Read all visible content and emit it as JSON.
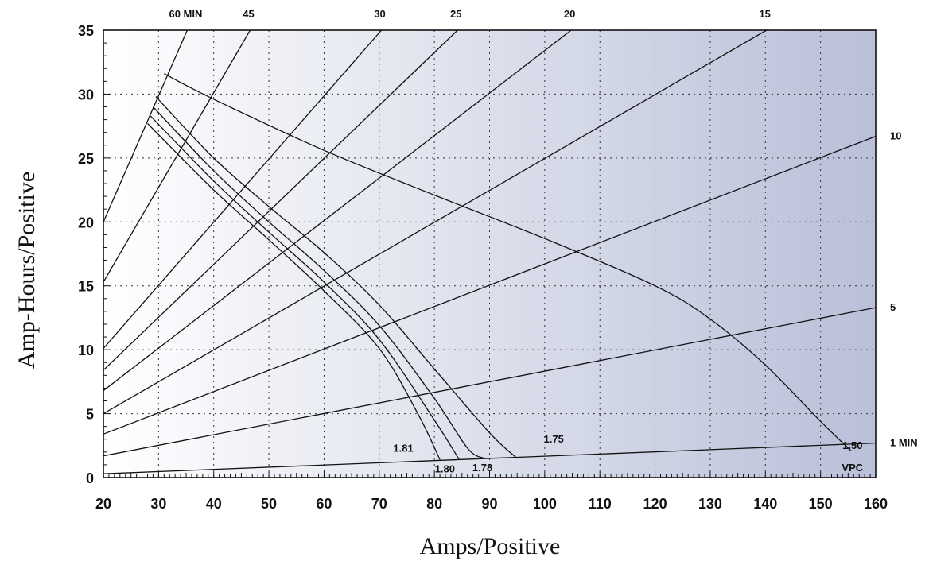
{
  "chart_data": {
    "type": "line",
    "title": "",
    "xlabel": "Amps/Positive",
    "ylabel": "Amp-Hours/Positive",
    "xlim": [
      20,
      160
    ],
    "ylim": [
      0,
      35
    ],
    "x_ticks": [
      "20",
      "30",
      "40",
      "50",
      "60",
      "70",
      "80",
      "90",
      "100",
      "110",
      "120",
      "130",
      "140",
      "150",
      "160"
    ],
    "y_ticks": [
      "0",
      "5",
      "10",
      "15",
      "20",
      "25",
      "30",
      "35"
    ],
    "grid": true,
    "background": {
      "from": "#ffffff",
      "to": "#b9c0d8"
    },
    "time_lines": [
      {
        "name": "60 MIN",
        "points": [
          [
            20,
            20.0
          ],
          [
            35.2,
            35
          ]
        ]
      },
      {
        "name": "45",
        "points": [
          [
            20,
            15.3
          ],
          [
            46.6,
            35
          ]
        ]
      },
      {
        "name": "30",
        "points": [
          [
            20,
            10.1
          ],
          [
            70.4,
            35
          ]
        ]
      },
      {
        "name": "25",
        "points": [
          [
            20,
            8.4
          ],
          [
            84.2,
            35
          ]
        ]
      },
      {
        "name": "20",
        "points": [
          [
            20,
            6.8
          ],
          [
            104.8,
            35
          ]
        ]
      },
      {
        "name": "15",
        "points": [
          [
            20,
            5.0
          ],
          [
            140.2,
            35
          ]
        ]
      },
      {
        "name": "10",
        "points": [
          [
            20,
            3.4
          ],
          [
            160,
            26.7
          ]
        ]
      },
      {
        "name": "5",
        "points": [
          [
            20,
            1.7
          ],
          [
            160,
            13.3
          ]
        ]
      },
      {
        "name": "1 MIN",
        "points": [
          [
            20,
            0.3
          ],
          [
            160,
            2.7
          ]
        ]
      }
    ],
    "voltage_curves": [
      {
        "name": "1.81",
        "points": [
          [
            28,
            27.7
          ],
          [
            40,
            22.5
          ],
          [
            50,
            18.6
          ],
          [
            60,
            14.6
          ],
          [
            70,
            10.1
          ],
          [
            77,
            5.0
          ],
          [
            81,
            1.4
          ]
        ]
      },
      {
        "name": "1.80",
        "points": [
          [
            28.5,
            28.3
          ],
          [
            40,
            23.2
          ],
          [
            50,
            19.2
          ],
          [
            60,
            15.3
          ],
          [
            70,
            10.8
          ],
          [
            80,
            4.5
          ],
          [
            84.5,
            1.4
          ]
        ]
      },
      {
        "name": "1.78",
        "points": [
          [
            29,
            29.0
          ],
          [
            40,
            24.0
          ],
          [
            50,
            20.0
          ],
          [
            60,
            16.2
          ],
          [
            70,
            11.9
          ],
          [
            80,
            6.2
          ],
          [
            86,
            2.3
          ],
          [
            89,
            1.5
          ]
        ]
      },
      {
        "name": "1.75",
        "points": [
          [
            29.5,
            29.8
          ],
          [
            40,
            25.0
          ],
          [
            50,
            21.2
          ],
          [
            60,
            17.6
          ],
          [
            70,
            13.5
          ],
          [
            80,
            8.5
          ],
          [
            90,
            3.5
          ],
          [
            95,
            1.5
          ]
        ]
      },
      {
        "name": "1.50",
        "points": [
          [
            31,
            31.6
          ],
          [
            40,
            29.6
          ],
          [
            60,
            25.6
          ],
          [
            80,
            22.1
          ],
          [
            100,
            18.7
          ],
          [
            120,
            15.0
          ],
          [
            130,
            12.4
          ],
          [
            140,
            8.8
          ],
          [
            150,
            4.4
          ],
          [
            155.5,
            2.1
          ]
        ]
      }
    ],
    "annotations": {
      "vpc": "VPC"
    }
  }
}
